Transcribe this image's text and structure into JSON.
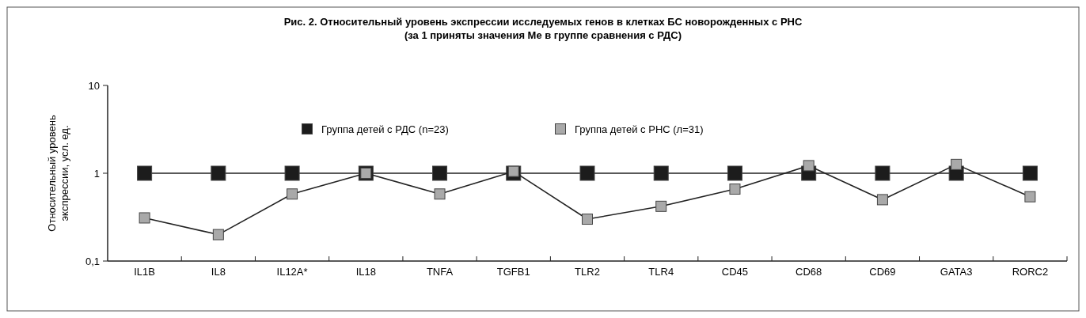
{
  "chart_data": {
    "type": "line",
    "title": "Рис. 2. Относительный уровень экспрессии исследуемых генов в клетках БС новорожденных с РНС",
    "subtitle": "(за 1 приняты значения Ме в группе сравнения с РДС)",
    "ylabel": "Относительный уровень экспрессии, усл. ед.",
    "categories": [
      "IL1B",
      "IL8",
      "IL12A*",
      "IL18",
      "TNFA",
      "TGFB1",
      "TLR2",
      "TLR4",
      "CD45",
      "CD68",
      "CD69",
      "GATA3",
      "RORC2"
    ],
    "series": [
      {
        "name": "Группа детей с РДС (n=23)",
        "color": "#1c1c1c",
        "values": [
          1,
          1,
          1,
          1,
          1,
          1,
          1,
          1,
          1,
          1,
          1,
          1,
          1
        ]
      },
      {
        "name": "Группа детей с РНС (л=31)",
        "color": "#a9a9a9",
        "values": [
          0.31,
          0.2,
          0.58,
          1,
          0.58,
          1.05,
          0.3,
          0.42,
          0.66,
          1.22,
          0.5,
          1.26,
          0.54
        ]
      }
    ],
    "log": true,
    "ylim": [
      0.1,
      10
    ],
    "yticks": [
      {
        "value": 0.1,
        "label": "0,1"
      },
      1,
      10
    ],
    "marker": "square",
    "line_style": "solid",
    "legend": "top",
    "grid": false
  }
}
